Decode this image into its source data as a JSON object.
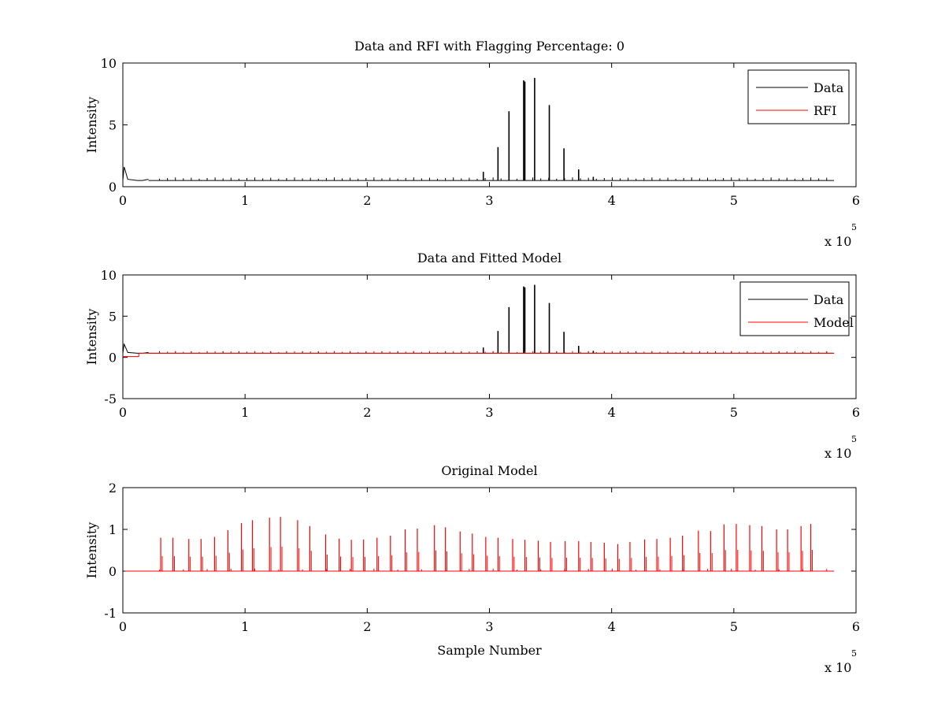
{
  "chart_data": [
    {
      "type": "line",
      "title": "Data and RFI with Flagging Percentage: 0",
      "xlabel": "",
      "ylabel": "Intensity",
      "xlim": [
        0,
        6
      ],
      "ylim": [
        0,
        10
      ],
      "xticks": [
        "0",
        "1",
        "2",
        "3",
        "4",
        "5",
        "6"
      ],
      "yticks": [
        "0",
        "5",
        "10"
      ],
      "x_exponent": {
        "base": "x 10",
        "power": "5"
      },
      "legend": {
        "placement": "top-right",
        "entries": [
          "Data",
          "RFI"
        ]
      },
      "series": [
        {
          "name": "Data",
          "color": "#000000",
          "baseline": 0.5,
          "spikes": [
            [
              2.95,
              1.2
            ],
            [
              3.07,
              3.2
            ],
            [
              3.16,
              6.1
            ],
            [
              3.28,
              8.6
            ],
            [
              3.29,
              8.5
            ],
            [
              3.37,
              8.8
            ],
            [
              3.49,
              6.6
            ],
            [
              3.61,
              3.1
            ],
            [
              3.73,
              1.4
            ],
            [
              3.85,
              0.8
            ]
          ],
          "start_bump": [
            [
              0.0,
              0.5
            ],
            [
              0.01,
              1.6
            ],
            [
              0.02,
              1.3
            ],
            [
              0.04,
              0.6
            ],
            [
              0.12,
              0.5
            ],
            [
              0.16,
              0.5
            ],
            [
              0.21,
              0.6
            ]
          ]
        },
        {
          "name": "RFI",
          "color": "#ff0000",
          "values": []
        }
      ]
    },
    {
      "type": "line",
      "title": "Data and Fitted Model",
      "xlabel": "",
      "ylabel": "Intensity",
      "xlim": [
        0,
        6
      ],
      "ylim": [
        -5,
        10
      ],
      "xticks": [
        "0",
        "1",
        "2",
        "3",
        "4",
        "5",
        "6"
      ],
      "yticks": [
        "-5",
        "0",
        "5",
        "10"
      ],
      "x_exponent": {
        "base": "x 10",
        "power": "5"
      },
      "legend": {
        "placement": "top-right",
        "entries": [
          "Data",
          "Model"
        ]
      },
      "series": [
        {
          "name": "Data",
          "color": "#000000",
          "baseline": 0.5,
          "spikes": [
            [
              2.95,
              1.2
            ],
            [
              3.07,
              3.2
            ],
            [
              3.16,
              6.1
            ],
            [
              3.28,
              8.6
            ],
            [
              3.29,
              8.5
            ],
            [
              3.37,
              8.8
            ],
            [
              3.49,
              6.6
            ],
            [
              3.61,
              3.1
            ],
            [
              3.73,
              1.4
            ],
            [
              3.85,
              0.8
            ]
          ],
          "start_bump": [
            [
              0.0,
              0.5
            ],
            [
              0.01,
              1.6
            ],
            [
              0.02,
              1.3
            ],
            [
              0.04,
              0.6
            ],
            [
              0.12,
              0.5
            ],
            [
              0.16,
              0.5
            ],
            [
              0.21,
              0.6
            ]
          ]
        },
        {
          "name": "Model",
          "color": "#ff0000",
          "baseline": 0.5,
          "start_dip": [
            [
              0.0,
              0.1
            ],
            [
              0.13,
              0.1
            ],
            [
              0.13,
              0.5
            ]
          ]
        }
      ]
    },
    {
      "type": "line",
      "title": "Original Model",
      "xlabel": "Sample Number",
      "ylabel": "Intensity",
      "xlim": [
        0,
        6
      ],
      "ylim": [
        -1,
        2
      ],
      "xticks": [
        "0",
        "1",
        "2",
        "3",
        "4",
        "5",
        "6"
      ],
      "yticks": [
        "-1",
        "0",
        "1",
        "2"
      ],
      "x_exponent": {
        "base": "x 10",
        "power": "5"
      },
      "series": [
        {
          "name": "",
          "color": "#ff0000",
          "baseline": 0.0,
          "spikes": [
            [
              0.31,
              0.8
            ],
            [
              0.41,
              0.8
            ],
            [
              0.54,
              0.77
            ],
            [
              0.64,
              0.77
            ],
            [
              0.75,
              0.82
            ],
            [
              0.86,
              0.98
            ],
            [
              0.97,
              1.15
            ],
            [
              1.06,
              1.22
            ],
            [
              1.2,
              1.28
            ],
            [
              1.29,
              1.3
            ],
            [
              1.43,
              1.22
            ],
            [
              1.53,
              1.08
            ],
            [
              1.66,
              0.88
            ],
            [
              1.77,
              0.78
            ],
            [
              1.87,
              0.75
            ],
            [
              1.97,
              0.76
            ],
            [
              2.08,
              0.8
            ],
            [
              2.19,
              0.85
            ],
            [
              2.31,
              1.0
            ],
            [
              2.41,
              1.02
            ],
            [
              2.55,
              1.1
            ],
            [
              2.64,
              1.05
            ],
            [
              2.76,
              0.95
            ],
            [
              2.86,
              0.9
            ],
            [
              2.97,
              0.82
            ],
            [
              3.07,
              0.8
            ],
            [
              3.19,
              0.77
            ],
            [
              3.29,
              0.75
            ],
            [
              3.4,
              0.73
            ],
            [
              3.5,
              0.7
            ],
            [
              3.62,
              0.72
            ],
            [
              3.73,
              0.72
            ],
            [
              3.83,
              0.7
            ],
            [
              3.94,
              0.68
            ],
            [
              4.05,
              0.65
            ],
            [
              4.15,
              0.7
            ],
            [
              4.27,
              0.76
            ],
            [
              4.37,
              0.77
            ],
            [
              4.48,
              0.8
            ],
            [
              4.58,
              0.85
            ],
            [
              4.71,
              0.97
            ],
            [
              4.81,
              0.96
            ],
            [
              4.92,
              1.12
            ],
            [
              5.02,
              1.13
            ],
            [
              5.13,
              1.1
            ],
            [
              5.23,
              1.08
            ],
            [
              5.35,
              1.0
            ],
            [
              5.44,
              1.0
            ],
            [
              5.55,
              1.08
            ],
            [
              5.63,
              1.13
            ]
          ]
        }
      ]
    }
  ]
}
